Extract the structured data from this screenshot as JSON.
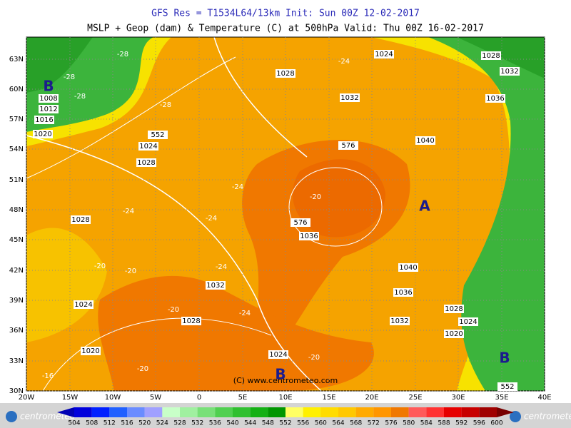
{
  "header": {
    "line1": "GFS Res = T1534L64/13km    Init: Sun 00Z 12-02-2017",
    "line2": "MSLP + Geop (dam) & Temperature (C) at 500hPa  Valid: Thu 00Z 16-02-2017"
  },
  "map": {
    "lat_labels": [
      "63N",
      "60N",
      "57N",
      "54N",
      "51N",
      "48N",
      "45N",
      "42N",
      "39N",
      "36N",
      "33N",
      "30N"
    ],
    "lon_labels": [
      "20W",
      "15W",
      "10W",
      "5W",
      "0",
      "5E",
      "10E",
      "15E",
      "20E",
      "25E",
      "30E",
      "35E",
      "40E"
    ],
    "pressure_labels": [
      "1008",
      "1012",
      "1016",
      "1020",
      "1024",
      "1028",
      "1028",
      "1024",
      "1028",
      "1032",
      "1036",
      "1032",
      "1040",
      "1036",
      "1040",
      "1036",
      "1032",
      "1028",
      "1024",
      "1020",
      "1032",
      "1028",
      "1024",
      "1020",
      "1024",
      "1028"
    ],
    "geopotential_labels": [
      "576",
      "576",
      "552",
      "552"
    ],
    "temperature_labels": [
      "-28",
      "-28",
      "-28",
      "-28",
      "-24",
      "-24",
      "-24",
      "-24",
      "-20",
      "-20",
      "-20",
      "-20",
      "-24",
      "-20",
      "-16",
      "-20",
      "-24"
    ],
    "markers": [
      "B",
      "B",
      "B",
      "A"
    ],
    "credit": "(C) www.centrometeo.com"
  },
  "colorbar": {
    "labels": [
      "504",
      "508",
      "512",
      "516",
      "520",
      "524",
      "528",
      "532",
      "536",
      "540",
      "544",
      "548",
      "552",
      "556",
      "560",
      "564",
      "568",
      "572",
      "576",
      "580",
      "584",
      "588",
      "592",
      "596",
      "600"
    ],
    "colors": [
      "#0000b4",
      "#0000dc",
      "#0020ff",
      "#2060ff",
      "#6a8cff",
      "#a0a0ff",
      "#c8ffc8",
      "#a0f0a0",
      "#78e078",
      "#50d050",
      "#30c030",
      "#14b014",
      "#009600",
      "#ffff64",
      "#fff000",
      "#ffdc00",
      "#ffc800",
      "#ffaa00",
      "#ff9600",
      "#f07800",
      "#ff5a5a",
      "#ff3232",
      "#e60000",
      "#c80000",
      "#a00000",
      "#780000"
    ]
  },
  "logos": [
    "centrometeo",
    "centrometeo"
  ]
}
